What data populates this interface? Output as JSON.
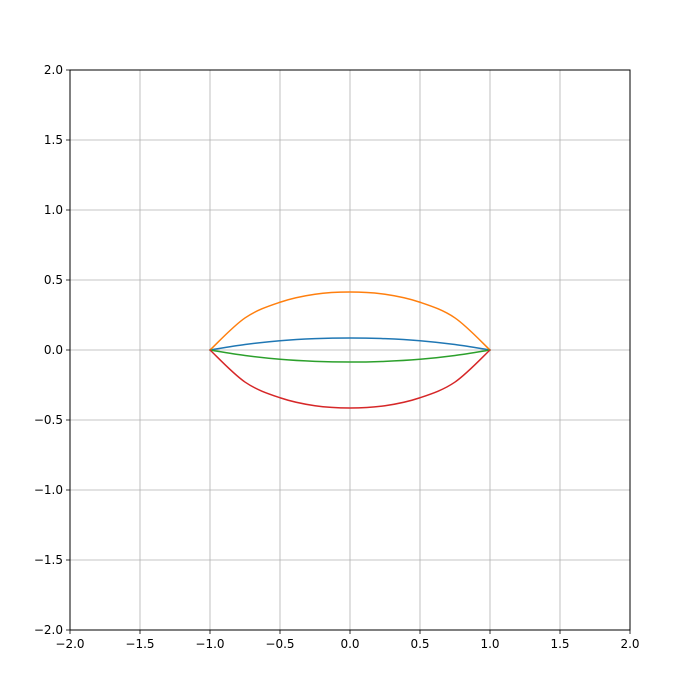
{
  "chart_data": {
    "type": "line",
    "title": "",
    "xlabel": "",
    "ylabel": "",
    "xlim": [
      -2.0,
      2.0
    ],
    "ylim": [
      -2.0,
      2.0
    ],
    "grid": true,
    "x_ticks": [
      -2.0,
      -1.5,
      -1.0,
      -0.5,
      0.0,
      0.5,
      1.0,
      1.5,
      2.0
    ],
    "y_ticks": [
      -2.0,
      -1.5,
      -1.0,
      -0.5,
      0.0,
      0.5,
      1.0,
      1.5,
      2.0
    ],
    "x_tick_labels": [
      "−2.0",
      "−1.5",
      "−1.0",
      "−0.5",
      "0.0",
      "0.5",
      "1.0",
      "1.5",
      "2.0"
    ],
    "y_tick_labels": [
      "−2.0",
      "−1.5",
      "−1.0",
      "−0.5",
      "0.0",
      "0.5",
      "1.0",
      "1.5",
      "2.0"
    ],
    "series": [
      {
        "color": "#1f77b4",
        "x": [
          -1.0,
          -0.75,
          -0.5,
          -0.25,
          0.0,
          0.25,
          0.5,
          0.75,
          1.0
        ],
        "y": [
          0.0,
          0.039,
          0.066,
          0.081,
          0.086,
          0.081,
          0.066,
          0.039,
          0.0
        ]
      },
      {
        "color": "#ff7f0e",
        "x": [
          -1.0,
          -0.75,
          -0.5,
          -0.25,
          0.0,
          0.25,
          0.5,
          0.75,
          1.0
        ],
        "y": [
          0.0,
          0.229,
          0.341,
          0.398,
          0.414,
          0.398,
          0.341,
          0.229,
          0.0
        ]
      },
      {
        "color": "#2ca02c",
        "x": [
          -1.0,
          -0.75,
          -0.5,
          -0.25,
          0.0,
          0.25,
          0.5,
          0.75,
          1.0
        ],
        "y": [
          0.0,
          -0.039,
          -0.066,
          -0.081,
          -0.086,
          -0.081,
          -0.066,
          -0.039,
          0.0
        ]
      },
      {
        "color": "#d62728",
        "x": [
          -1.0,
          -0.75,
          -0.5,
          -0.25,
          0.0,
          0.25,
          0.5,
          0.75,
          1.0
        ],
        "y": [
          0.0,
          -0.229,
          -0.341,
          -0.398,
          -0.414,
          -0.398,
          -0.341,
          -0.229,
          0.0
        ]
      }
    ]
  }
}
